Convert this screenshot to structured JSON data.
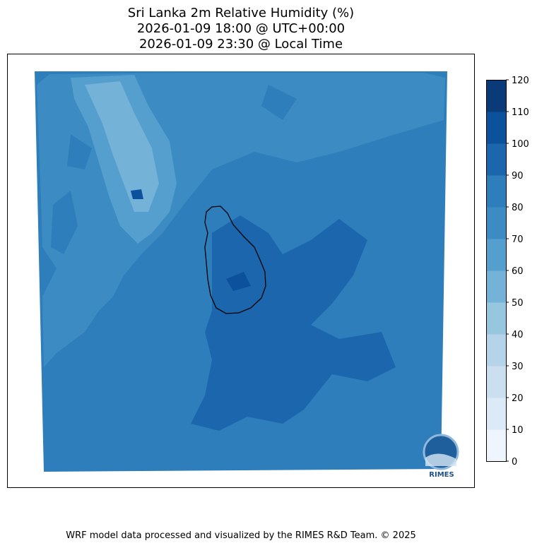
{
  "title": {
    "line1": "Sri Lanka 2m Relative Humidity (%)",
    "line2": "2026-01-09 18:00 @ UTC+00:00",
    "line3": "2026-01-09 23:30 @ Local Time"
  },
  "chart_data": {
    "type": "contourf",
    "variable": "2m Relative Humidity (%)",
    "region": "Sri Lanka",
    "colormap": "Blues",
    "levels": [
      0,
      10,
      20,
      30,
      40,
      50,
      60,
      70,
      80,
      90,
      100,
      110,
      120
    ],
    "level_colors": [
      "#eef5fc",
      "#dce9f6",
      "#cbdff1",
      "#b6d4e9",
      "#97c6df",
      "#74b2d8",
      "#549fcd",
      "#3c8bc3",
      "#2e7ebc",
      "#1b66ad",
      "#0b519c",
      "#0a3a78"
    ],
    "colorbar_ticks": [
      "0",
      "10",
      "20",
      "30",
      "40",
      "50",
      "60",
      "70",
      "80",
      "90",
      "100",
      "110",
      "120"
    ],
    "dominant_range": [
      80,
      90
    ]
  },
  "logo": {
    "text": "RIMES"
  },
  "footer": "WRF model data processed and visualized by the RIMES R&D Team. © 2025"
}
